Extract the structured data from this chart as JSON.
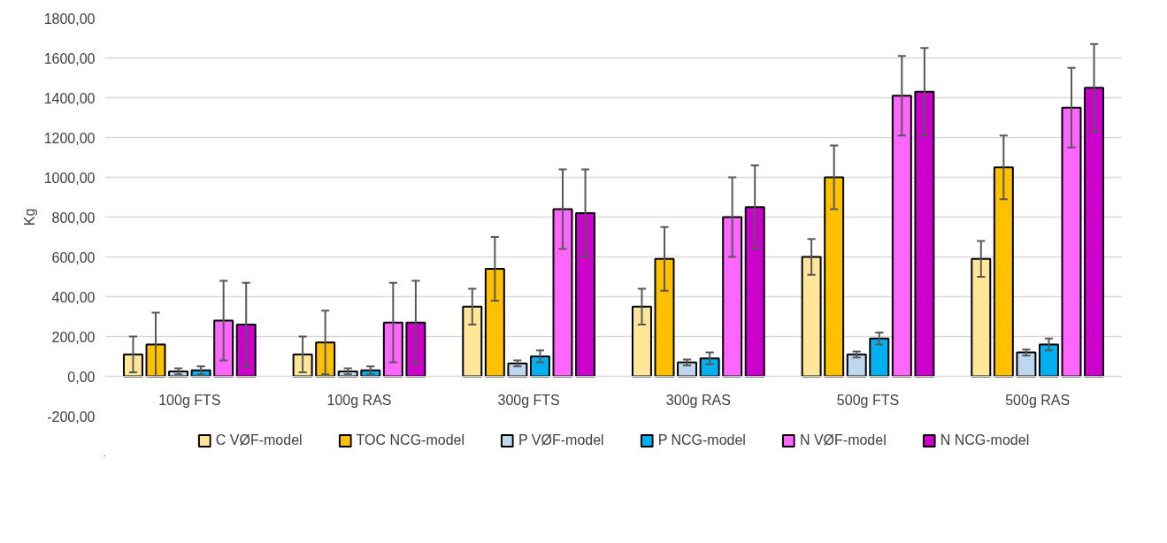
{
  "chart_data": {
    "type": "bar",
    "ylabel": "Kg",
    "categories": [
      "100g FTS",
      "100g RAS",
      "300g FTS",
      "300g RAS",
      "500g FTS",
      "500g RAS"
    ],
    "series": [
      {
        "name": "C VØF-model",
        "color": "#ffe699",
        "values": [
          110,
          110,
          350,
          350,
          600,
          590
        ],
        "errors": [
          90,
          90,
          90,
          90,
          90,
          90
        ]
      },
      {
        "name": "TOC NCG-model",
        "color": "#ffc000",
        "values": [
          160,
          170,
          540,
          590,
          1000,
          1050
        ],
        "errors": [
          160,
          160,
          160,
          160,
          160,
          160
        ]
      },
      {
        "name": "P VØF-model",
        "color": "#bdd7ee",
        "values": [
          25,
          25,
          65,
          70,
          110,
          120
        ],
        "errors": [
          15,
          15,
          15,
          15,
          15,
          15
        ]
      },
      {
        "name": "P NCG-model",
        "color": "#00b0f0",
        "values": [
          30,
          30,
          100,
          90,
          190,
          160
        ],
        "errors": [
          20,
          20,
          30,
          30,
          30,
          30
        ]
      },
      {
        "name": "N VØF-model",
        "color": "#ff66ff",
        "values": [
          280,
          270,
          840,
          800,
          1410,
          1350
        ],
        "errors": [
          200,
          200,
          200,
          200,
          200,
          200
        ]
      },
      {
        "name": "N NCG-model",
        "color": "#cc00cc",
        "values": [
          260,
          270,
          820,
          850,
          1430,
          1450
        ],
        "errors": [
          210,
          210,
          220,
          210,
          220,
          220
        ]
      }
    ],
    "ylim": [
      -200,
      1800
    ],
    "yticks": [
      {
        "value": -200,
        "label": "-200,00"
      },
      {
        "value": 0,
        "label": "0,00"
      },
      {
        "value": 200,
        "label": "200,00"
      },
      {
        "value": 400,
        "label": "400,00"
      },
      {
        "value": 600,
        "label": "600,00"
      },
      {
        "value": 800,
        "label": "800,00"
      },
      {
        "value": 1000,
        "label": "1000,00"
      },
      {
        "value": 1200,
        "label": "1200,00"
      },
      {
        "value": 1400,
        "label": "1400,00"
      },
      {
        "value": 1600,
        "label": "1600,00"
      },
      {
        "value": 1800,
        "label": "1800,00"
      }
    ],
    "grid": "y",
    "legend": "bottom"
  }
}
